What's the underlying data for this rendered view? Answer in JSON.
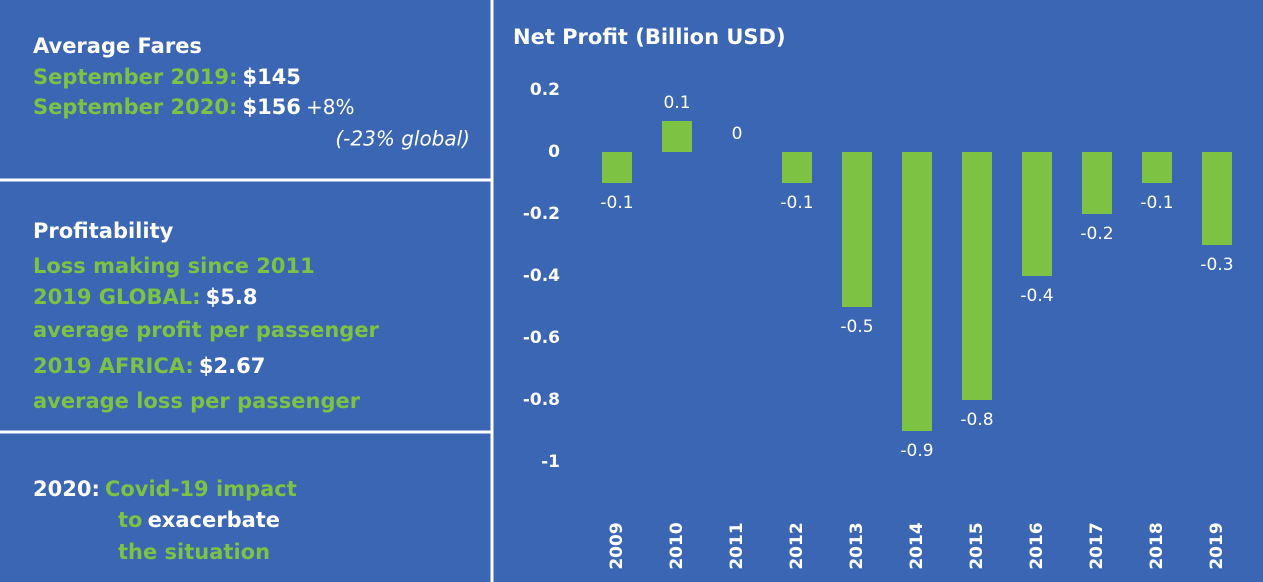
{
  "fares": {
    "title": "Average Fares",
    "rows": [
      {
        "label": "September 2019:",
        "value": "$145"
      },
      {
        "label": "September 2020:",
        "value": "$156",
        "change": "+8%"
      }
    ],
    "note": "(-23% global)"
  },
  "profitability": {
    "title": "Profitability",
    "line1": "Loss making since 2011",
    "global_label": "2019 GLOBAL:",
    "global_value": "$5.8",
    "global_text": "average profit per passenger",
    "africa_label": "2019 AFRICA:",
    "africa_value": "$2.67",
    "africa_text": "average loss per passenger"
  },
  "outlook": {
    "year": "2020:",
    "line1": "Covid-19 impact",
    "to": "to",
    "emphasis": "exacerbate",
    "line3": "the situation"
  },
  "chart_data": {
    "type": "bar",
    "title": "Net Profit (Billion USD)",
    "categories": [
      "2009",
      "2010",
      "2011",
      "2012",
      "2013",
      "2014",
      "2015",
      "2016",
      "2017",
      "2018",
      "2019"
    ],
    "values": [
      -0.1,
      0.1,
      0,
      -0.1,
      -0.5,
      -0.9,
      -0.8,
      -0.4,
      -0.2,
      -0.1,
      -0.3
    ],
    "color": "#7dc242",
    "ylim": [
      -1.05,
      0.25
    ],
    "yticks": [
      0.2,
      0,
      -0.2,
      -0.4,
      -0.6,
      -0.8,
      -1
    ],
    "grid": false
  }
}
